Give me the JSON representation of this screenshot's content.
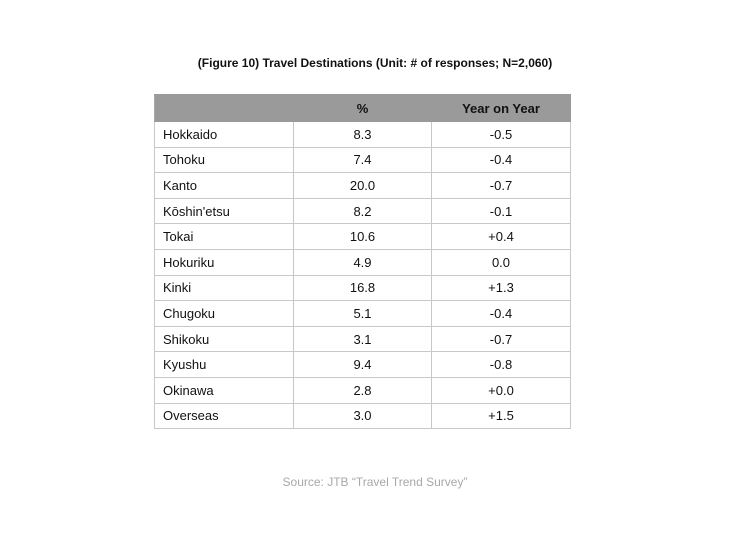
{
  "title": "(Figure 10) Travel Destinations (Unit: # of responses; N=2,060)",
  "source": "Source: JTB “Travel Trend Survey”",
  "chart_data": {
    "type": "table",
    "title": "(Figure 10) Travel Destinations (Unit: # of responses; N=2,060)",
    "columns": [
      "",
      "%",
      "Year on Year"
    ],
    "rows": [
      {
        "region": "Hokkaido",
        "percent": "8.3",
        "yoy": "-0.5"
      },
      {
        "region": "Tohoku",
        "percent": "7.4",
        "yoy": "-0.4"
      },
      {
        "region": "Kanto",
        "percent": "20.0",
        "yoy": "-0.7"
      },
      {
        "region": "Kōshin'etsu",
        "percent": "8.2",
        "yoy": "-0.1"
      },
      {
        "region": "Tokai",
        "percent": "10.6",
        "yoy": "+0.4"
      },
      {
        "region": "Hokuriku",
        "percent": "4.9",
        "yoy": "0.0"
      },
      {
        "region": "Kinki",
        "percent": "16.8",
        "yoy": "+1.3"
      },
      {
        "region": "Chugoku",
        "percent": "5.1",
        "yoy": "-0.4"
      },
      {
        "region": "Shikoku",
        "percent": "3.1",
        "yoy": "-0.7"
      },
      {
        "region": "Kyushu",
        "percent": "9.4",
        "yoy": "-0.8"
      },
      {
        "region": "Okinawa",
        "percent": "2.8",
        "yoy": "+0.0"
      },
      {
        "region": "Overseas",
        "percent": "3.0",
        "yoy": "+1.5"
      }
    ]
  },
  "colors": {
    "header_bg": "#9a9a9a",
    "grid_line": "#c8c8c8",
    "source_text": "#a8a8a8"
  }
}
